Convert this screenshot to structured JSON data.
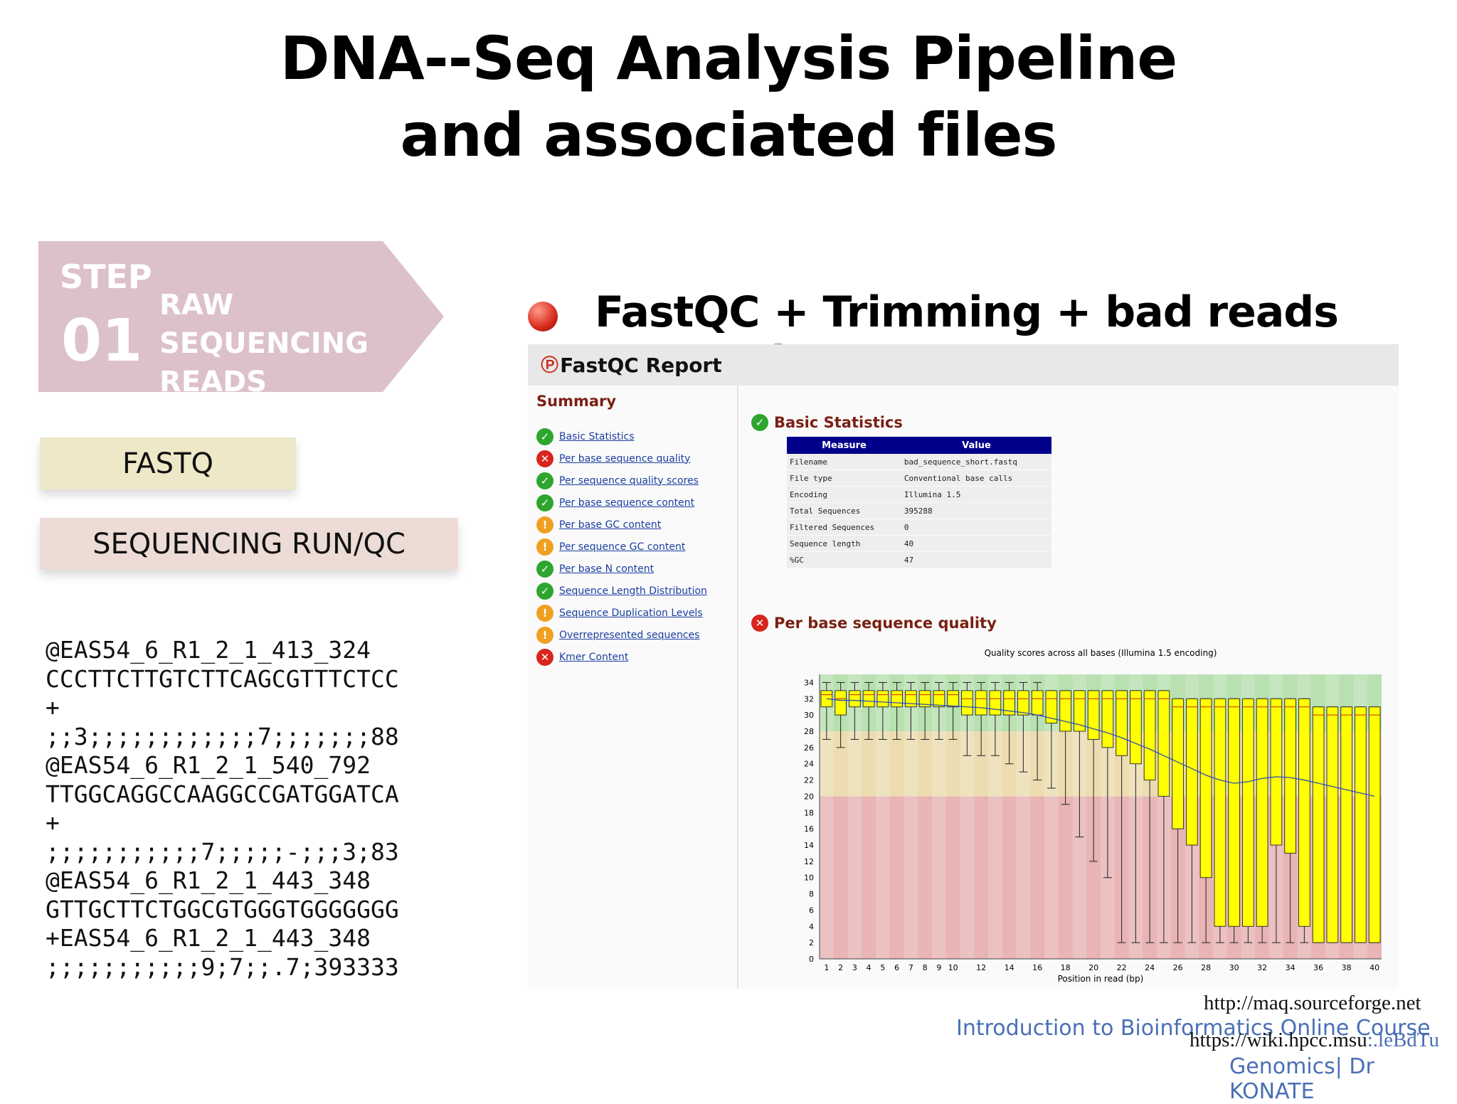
{
  "title": {
    "line1": "DNA--Seq Analysis Pipeline",
    "line2": "and associated files"
  },
  "step": {
    "label": "STEP",
    "number": "01",
    "name": "RAW SEQUENCING READS",
    "color": "#dcc0cc"
  },
  "boxes": {
    "fastq": "FASTQ",
    "seqrun": "SEQUENCING RUN/QC"
  },
  "fastq_lines": [
    "@EAS54_6_R1_2_1_413_324",
    "CCCTTCTTGTCTTCAGCGTTTCTCC",
    "+",
    ";;3;;;;;;;;;;;;7;;;;;;;88",
    "@EAS54_6_R1_2_1_540_792",
    "TTGGCAGGCCAAGGCCGATGGATCA",
    "+",
    ";;;;;;;;;;;7;;;;;-;;;3;83",
    "@EAS54_6_R1_2_1_443_348",
    "GTTGCTTCTGGCGTGGGTGGGGGGG",
    "+EAS54_6_R1_2_1_443_348",
    ";;;;;;;;;;;9;7;;.7;393333"
  ],
  "heading": "FastQC + Trimming + bad reads removal",
  "report": {
    "title": "FastQC Report",
    "summary_title": "Summary",
    "summary": [
      {
        "label": "Basic Statistics",
        "status": "pass"
      },
      {
        "label": "Per base sequence quality",
        "status": "fail"
      },
      {
        "label": "Per sequence quality scores",
        "status": "pass"
      },
      {
        "label": "Per base sequence content",
        "status": "pass"
      },
      {
        "label": "Per base GC content",
        "status": "warn"
      },
      {
        "label": "Per sequence GC content",
        "status": "warn"
      },
      {
        "label": "Per base N content",
        "status": "pass"
      },
      {
        "label": "Sequence Length Distribution",
        "status": "pass"
      },
      {
        "label": "Sequence Duplication Levels",
        "status": "warn"
      },
      {
        "label": "Overrepresented sequences",
        "status": "warn"
      },
      {
        "label": "Kmer Content",
        "status": "fail"
      }
    ],
    "basic_stats_title": "Basic Statistics",
    "table_headers": [
      "Measure",
      "Value"
    ],
    "table_rows": [
      [
        "Filename",
        "bad_sequence_short.fastq"
      ],
      [
        "File type",
        "Conventional base calls"
      ],
      [
        "Encoding",
        "Illumina 1.5"
      ],
      [
        "Total Sequences",
        "395288"
      ],
      [
        "Filtered Sequences",
        "0"
      ],
      [
        "Sequence length",
        "40"
      ],
      [
        "%GC",
        "47"
      ]
    ],
    "quality_title": "Per base sequence quality",
    "plot_title": "Quality scores across all bases (Illumina 1.5 encoding)",
    "plot_xlabel": "Position in read (bp)",
    "plot_yticks": [
      0,
      2,
      4,
      6,
      8,
      10,
      12,
      14,
      16,
      18,
      20,
      22,
      24,
      26,
      28,
      30,
      32,
      34
    ],
    "plot_xticks": [
      "1",
      "2",
      "3",
      "4",
      "5",
      "6",
      "7",
      "8",
      "9",
      "10",
      "12",
      "14",
      "16",
      "18",
      "20",
      "22",
      "24",
      "26",
      "28",
      "30",
      "32",
      "34",
      "36",
      "38",
      "40"
    ]
  },
  "chart_data": {
    "type": "box",
    "title": "Quality scores across all bases (Illumina 1.5 encoding)",
    "xlabel": "Position in read (bp)",
    "ylabel": "",
    "ylim": [
      0,
      35
    ],
    "bands": [
      {
        "from": 0,
        "to": 20,
        "color": "#e8b4b4"
      },
      {
        "from": 20,
        "to": 28,
        "color": "#ecdcb0"
      },
      {
        "from": 28,
        "to": 35,
        "color": "#b8e0b0"
      }
    ],
    "boxes": [
      {
        "q1": 31,
        "q3": 33,
        "median": 32.5,
        "low": 27,
        "high": 34
      },
      {
        "q1": 30,
        "q3": 33,
        "median": 32,
        "low": 26,
        "high": 34
      },
      {
        "q1": 31,
        "q3": 33,
        "median": 32.5,
        "low": 27,
        "high": 34
      },
      {
        "q1": 31,
        "q3": 33,
        "median": 32.5,
        "low": 27,
        "high": 34
      },
      {
        "q1": 31,
        "q3": 33,
        "median": 32.5,
        "low": 27,
        "high": 34
      },
      {
        "q1": 31,
        "q3": 33,
        "median": 32.5,
        "low": 27,
        "high": 34
      },
      {
        "q1": 31,
        "q3": 33,
        "median": 32.5,
        "low": 27,
        "high": 34
      },
      {
        "q1": 31,
        "q3": 33,
        "median": 32.5,
        "low": 27,
        "high": 34
      },
      {
        "q1": 31,
        "q3": 33,
        "median": 32.5,
        "low": 27,
        "high": 34
      },
      {
        "q1": 31,
        "q3": 33,
        "median": 32.5,
        "low": 27,
        "high": 34
      },
      {
        "q1": 30,
        "q3": 33,
        "median": 32,
        "low": 25,
        "high": 34
      },
      {
        "q1": 30,
        "q3": 33,
        "median": 32,
        "low": 25,
        "high": 34
      },
      {
        "q1": 30,
        "q3": 33,
        "median": 32,
        "low": 25,
        "high": 34
      },
      {
        "q1": 30,
        "q3": 33,
        "median": 32,
        "low": 24,
        "high": 34
      },
      {
        "q1": 30,
        "q3": 33,
        "median": 32,
        "low": 23,
        "high": 34
      },
      {
        "q1": 30,
        "q3": 33,
        "median": 32,
        "low": 22,
        "high": 34
      },
      {
        "q1": 29,
        "q3": 33,
        "median": 32,
        "low": 21,
        "high": 33
      },
      {
        "q1": 28,
        "q3": 33,
        "median": 32,
        "low": 19,
        "high": 33
      },
      {
        "q1": 28,
        "q3": 33,
        "median": 32,
        "low": 15,
        "high": 33
      },
      {
        "q1": 27,
        "q3": 33,
        "median": 32,
        "low": 12,
        "high": 33
      },
      {
        "q1": 26,
        "q3": 33,
        "median": 32,
        "low": 10,
        "high": 33
      },
      {
        "q1": 25,
        "q3": 33,
        "median": 32,
        "low": 2,
        "high": 33
      },
      {
        "q1": 24,
        "q3": 33,
        "median": 32,
        "low": 2,
        "high": 33
      },
      {
        "q1": 22,
        "q3": 33,
        "median": 32,
        "low": 2,
        "high": 33
      },
      {
        "q1": 20,
        "q3": 33,
        "median": 32,
        "low": 2,
        "high": 33
      },
      {
        "q1": 16,
        "q3": 32,
        "median": 31,
        "low": 2,
        "high": 32
      },
      {
        "q1": 14,
        "q3": 32,
        "median": 31,
        "low": 2,
        "high": 32
      },
      {
        "q1": 10,
        "q3": 32,
        "median": 31,
        "low": 2,
        "high": 32
      },
      {
        "q1": 4,
        "q3": 32,
        "median": 31,
        "low": 2,
        "high": 32
      },
      {
        "q1": 4,
        "q3": 32,
        "median": 31,
        "low": 2,
        "high": 32
      },
      {
        "q1": 4,
        "q3": 32,
        "median": 31,
        "low": 2,
        "high": 32
      },
      {
        "q1": 4,
        "q3": 32,
        "median": 31,
        "low": 2,
        "high": 32
      },
      {
        "q1": 14,
        "q3": 32,
        "median": 31,
        "low": 2,
        "high": 32
      },
      {
        "q1": 13,
        "q3": 32,
        "median": 31,
        "low": 2,
        "high": 32
      },
      {
        "q1": 4,
        "q3": 32,
        "median": 31,
        "low": 2,
        "high": 32
      },
      {
        "q1": 2,
        "q3": 31,
        "median": 30,
        "low": 2,
        "high": 31
      },
      {
        "q1": 2,
        "q3": 31,
        "median": 30,
        "low": 2,
        "high": 31
      },
      {
        "q1": 2,
        "q3": 31,
        "median": 30,
        "low": 2,
        "high": 31
      },
      {
        "q1": 2,
        "q3": 31,
        "median": 30,
        "low": 2,
        "high": 31
      },
      {
        "q1": 2,
        "q3": 31,
        "median": 30,
        "low": 2,
        "high": 31
      }
    ],
    "mean": [
      32,
      31.8,
      31.8,
      31.7,
      31.6,
      31.5,
      31.4,
      31.3,
      31.2,
      31.1,
      31,
      30.9,
      30.7,
      30.5,
      30.3,
      30,
      29.6,
      29.2,
      28.8,
      28.3,
      27.8,
      27.2,
      26.5,
      25.8,
      25,
      24.2,
      23.4,
      22.6,
      22,
      21.6,
      21.8,
      22.2,
      22.4,
      22.3,
      22,
      21.6,
      21.2,
      20.8,
      20.4,
      20
    ]
  },
  "footer": {
    "link1": "http://maq.sourceforge.net",
    "link2": "https://wiki.hpcc.msu",
    "link2_tail": ":.leBdTu",
    "course": "Introduction to Bioinformatics Online Course",
    "course2": "Genomics| Dr KONATE"
  }
}
